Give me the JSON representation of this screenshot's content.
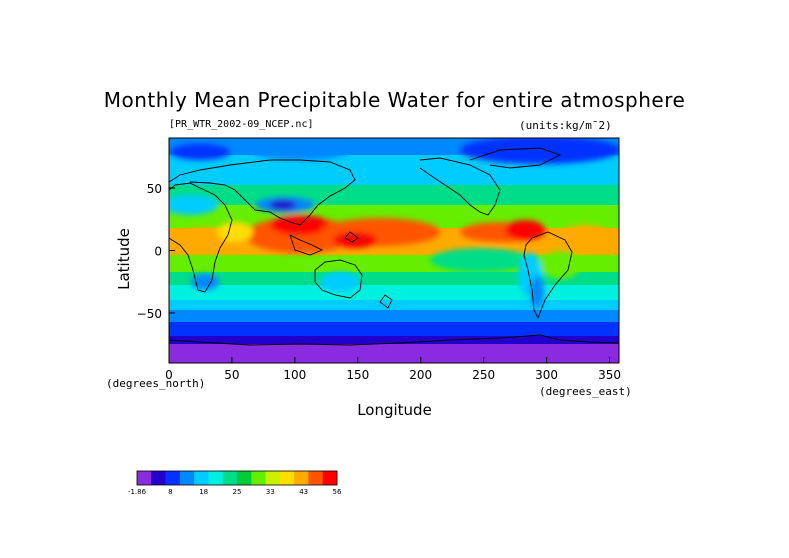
{
  "title": "Monthly Mean Precipitable Water for entire atmosphere",
  "subtitle": "[PR_WTR_2002-09_NCEP.nc]",
  "units": "(units:kg/m¯2)",
  "chart_data": {
    "type": "heatmap",
    "xlabel": "Longitude",
    "ylabel": "Latitude",
    "x_unit_label": "(degrees_east)",
    "y_unit_label": "(degrees_north)",
    "xlim": [
      0,
      357.5
    ],
    "ylim": [
      -90,
      90
    ],
    "x_ticks": [
      0,
      50,
      100,
      150,
      200,
      250,
      300,
      350
    ],
    "y_ticks": [
      50,
      0,
      -50
    ],
    "y_tick_labels": [
      "50",
      "0",
      "−50"
    ],
    "colorbar": {
      "tick_labels": [
        "-1.86",
        "8",
        "18",
        "25",
        "33",
        "43",
        "56"
      ],
      "colors": [
        "#8a2be2",
        "#2200cc",
        "#0033ff",
        "#0088ff",
        "#00ccff",
        "#00f0e0",
        "#00dd88",
        "#00cc33",
        "#66ee00",
        "#ccee00",
        "#ffdd00",
        "#ffaa00",
        "#ff5500",
        "#ff0000"
      ]
    }
  }
}
